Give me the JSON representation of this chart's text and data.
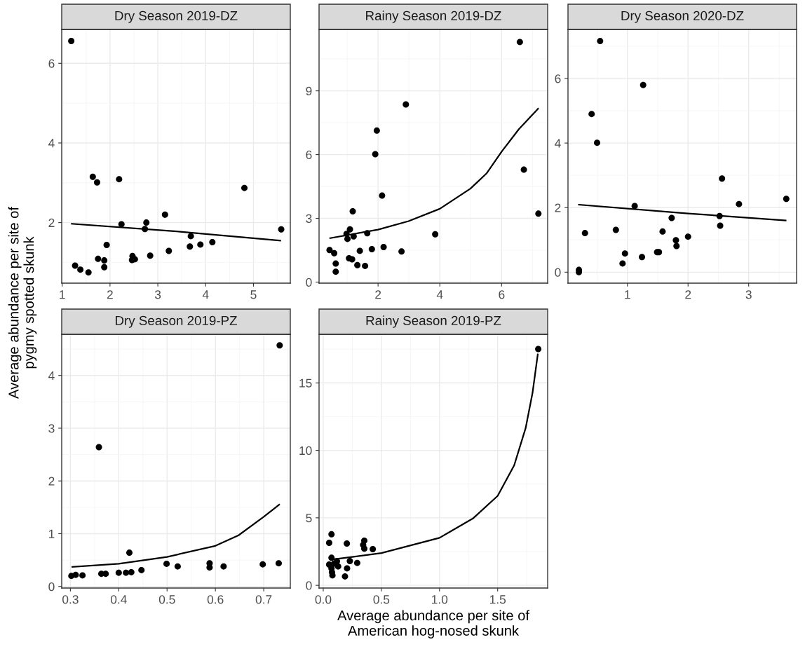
{
  "chart_data": [
    {
      "type": "scatter",
      "title": "Dry Season 2019-DZ",
      "ylabel": "Average abundance per site of\npygmy spotted skunk",
      "xlim": [
        0.99,
        5.77
      ],
      "ylim": [
        0.48,
        6.85
      ],
      "xticks": [
        1,
        2,
        3,
        4,
        5
      ],
      "yticks": [
        2,
        4,
        6
      ],
      "grid": true,
      "series": [
        {
          "marker": "circle",
          "color": "#000000",
          "x": [
            1.19,
            1.64,
            1.73,
            2.19,
            4.81,
            3.15,
            2.24,
            2.76,
            2.73,
            5.58,
            3.69,
            3.67,
            3.89,
            4.14,
            1.93,
            3.23,
            2.84,
            2.47,
            2.46,
            2.52,
            1.75,
            1.88,
            1.88,
            1.27,
            1.38,
            1.55
          ],
          "values": [
            6.56,
            3.15,
            3.01,
            3.09,
            2.87,
            2.2,
            1.96,
            2.0,
            1.84,
            1.83,
            1.66,
            1.4,
            1.45,
            1.51,
            1.44,
            1.29,
            1.17,
            1.16,
            1.06,
            1.08,
            1.09,
            1.05,
            0.88,
            0.92,
            0.82,
            0.75
          ]
        },
        {
          "type": "line",
          "color": "#000000",
          "x": [
            1.2,
            3.39,
            5.56
          ],
          "values": [
            1.97,
            1.78,
            1.55
          ]
        }
      ]
    },
    {
      "type": "scatter",
      "title": "Rainy Season 2019-DZ",
      "xlim": [
        0.09,
        7.49
      ],
      "ylim": [
        -0.05,
        11.89
      ],
      "xticks": [
        2,
        4,
        6
      ],
      "yticks": [
        0,
        3,
        6,
        9
      ],
      "grid": true,
      "series": [
        {
          "marker": "circle",
          "color": "#000000",
          "x": [
            6.59,
            2.9,
            1.96,
            1.91,
            2.13,
            6.72,
            7.19,
            1.18,
            1.09,
            0.98,
            1.01,
            1.21,
            1.65,
            3.85,
            2.18,
            1.8,
            2.76,
            1.41,
            0.43,
            0.58,
            1.06,
            1.16,
            0.63,
            1.33,
            1.58,
            0.63
          ],
          "values": [
            11.3,
            8.36,
            7.13,
            6.02,
            4.07,
            5.29,
            3.22,
            3.33,
            2.48,
            2.27,
            2.03,
            2.15,
            2.3,
            2.25,
            1.65,
            1.55,
            1.44,
            1.47,
            1.51,
            1.36,
            1.12,
            1.07,
            0.87,
            0.8,
            0.76,
            0.49
          ]
        },
        {
          "type": "line",
          "color": "#000000",
          "x": [
            0.45,
            2.0,
            2.99,
            4.0,
            4.99,
            5.51,
            6.0,
            6.55,
            7.18
          ],
          "values": [
            2.07,
            2.47,
            2.87,
            3.45,
            4.4,
            5.11,
            6.14,
            7.18,
            8.16
          ]
        }
      ]
    },
    {
      "type": "scatter",
      "title": "Dry Season 2020-DZ",
      "xlim": [
        0.02,
        3.79
      ],
      "ylim": [
        -0.34,
        7.52
      ],
      "xticks": [
        1,
        2,
        3
      ],
      "yticks": [
        0,
        2,
        4,
        6
      ],
      "grid": true,
      "series": [
        {
          "marker": "circle",
          "color": "#000000",
          "x": [
            0.55,
            1.26,
            0.41,
            0.5,
            2.56,
            3.62,
            2.84,
            1.12,
            2.52,
            1.73,
            2.53,
            0.3,
            0.81,
            1.58,
            2.0,
            1.8,
            1.81,
            1.49,
            1.52,
            0.96,
            1.24,
            0.92,
            0.2,
            0.2
          ],
          "values": [
            7.16,
            5.8,
            4.9,
            4.01,
            2.9,
            2.27,
            2.11,
            2.05,
            1.74,
            1.68,
            1.44,
            1.21,
            1.31,
            1.26,
            1.1,
            0.99,
            0.81,
            0.62,
            0.62,
            0.58,
            0.47,
            0.27,
            0.07,
            0.0
          ]
        },
        {
          "type": "line",
          "color": "#000000",
          "x": [
            0.2,
            2.0,
            3.61
          ],
          "values": [
            2.09,
            1.82,
            1.6
          ]
        }
      ]
    },
    {
      "type": "scatter",
      "title": "Dry Season 2019-PZ",
      "xlim": [
        0.282,
        0.755
      ],
      "ylim": [
        -0.03,
        4.78
      ],
      "xticks": [
        0.3,
        0.4,
        0.5,
        0.6,
        0.7
      ],
      "yticks": [
        0,
        1,
        2,
        3,
        4
      ],
      "grid": true,
      "series": [
        {
          "marker": "circle",
          "color": "#000000",
          "x": [
            0.733,
            0.359,
            0.422,
            0.499,
            0.522,
            0.588,
            0.588,
            0.617,
            0.698,
            0.731,
            0.447,
            0.4,
            0.415,
            0.426,
            0.364,
            0.373,
            0.302,
            0.311,
            0.325
          ],
          "values": [
            4.57,
            2.64,
            0.64,
            0.43,
            0.38,
            0.44,
            0.36,
            0.38,
            0.42,
            0.44,
            0.31,
            0.26,
            0.26,
            0.27,
            0.24,
            0.24,
            0.2,
            0.22,
            0.21
          ]
        },
        {
          "type": "line",
          "color": "#000000",
          "x": [
            0.304,
            0.4,
            0.5,
            0.6,
            0.648,
            0.7,
            0.732
          ],
          "values": [
            0.37,
            0.43,
            0.56,
            0.77,
            0.97,
            1.32,
            1.55
          ]
        }
      ]
    },
    {
      "type": "scatter",
      "title": "Rainy Season 2019-PZ",
      "xlabel": "Average abundance per site of\nAmerican hog-nosed skunk",
      "xlim": [
        -0.036,
        1.93
      ],
      "ylim": [
        -0.2,
        18.6
      ],
      "xticks": [
        {
          "value": 0,
          "label": "0.0"
        },
        0.5,
        {
          "value": 1,
          "label": "1.0"
        },
        1.5
      ],
      "yticks": [
        0,
        5,
        10,
        15
      ],
      "grid": true,
      "series": [
        {
          "marker": "circle",
          "color": "#000000",
          "x": [
            1.849,
            0.071,
            0.051,
            0.203,
            0.353,
            0.343,
            0.353,
            0.426,
            0.071,
            0.229,
            0.292,
            0.118,
            0.051,
            0.093,
            0.128,
            0.071,
            0.205,
            0.075,
            0.079,
            0.187
          ],
          "values": [
            17.51,
            3.78,
            3.15,
            3.1,
            3.31,
            3.0,
            2.72,
            2.68,
            2.04,
            1.8,
            1.66,
            1.78,
            1.54,
            1.61,
            1.4,
            1.26,
            1.26,
            0.97,
            0.74,
            0.66
          ]
        },
        {
          "type": "line",
          "color": "#000000",
          "x": [
            0.083,
            0.5,
            1.0,
            1.287,
            1.5,
            1.642,
            1.741,
            1.8,
            1.845
          ],
          "values": [
            1.92,
            2.39,
            3.52,
            4.95,
            6.63,
            8.89,
            11.66,
            14.26,
            17.11
          ]
        }
      ]
    }
  ]
}
